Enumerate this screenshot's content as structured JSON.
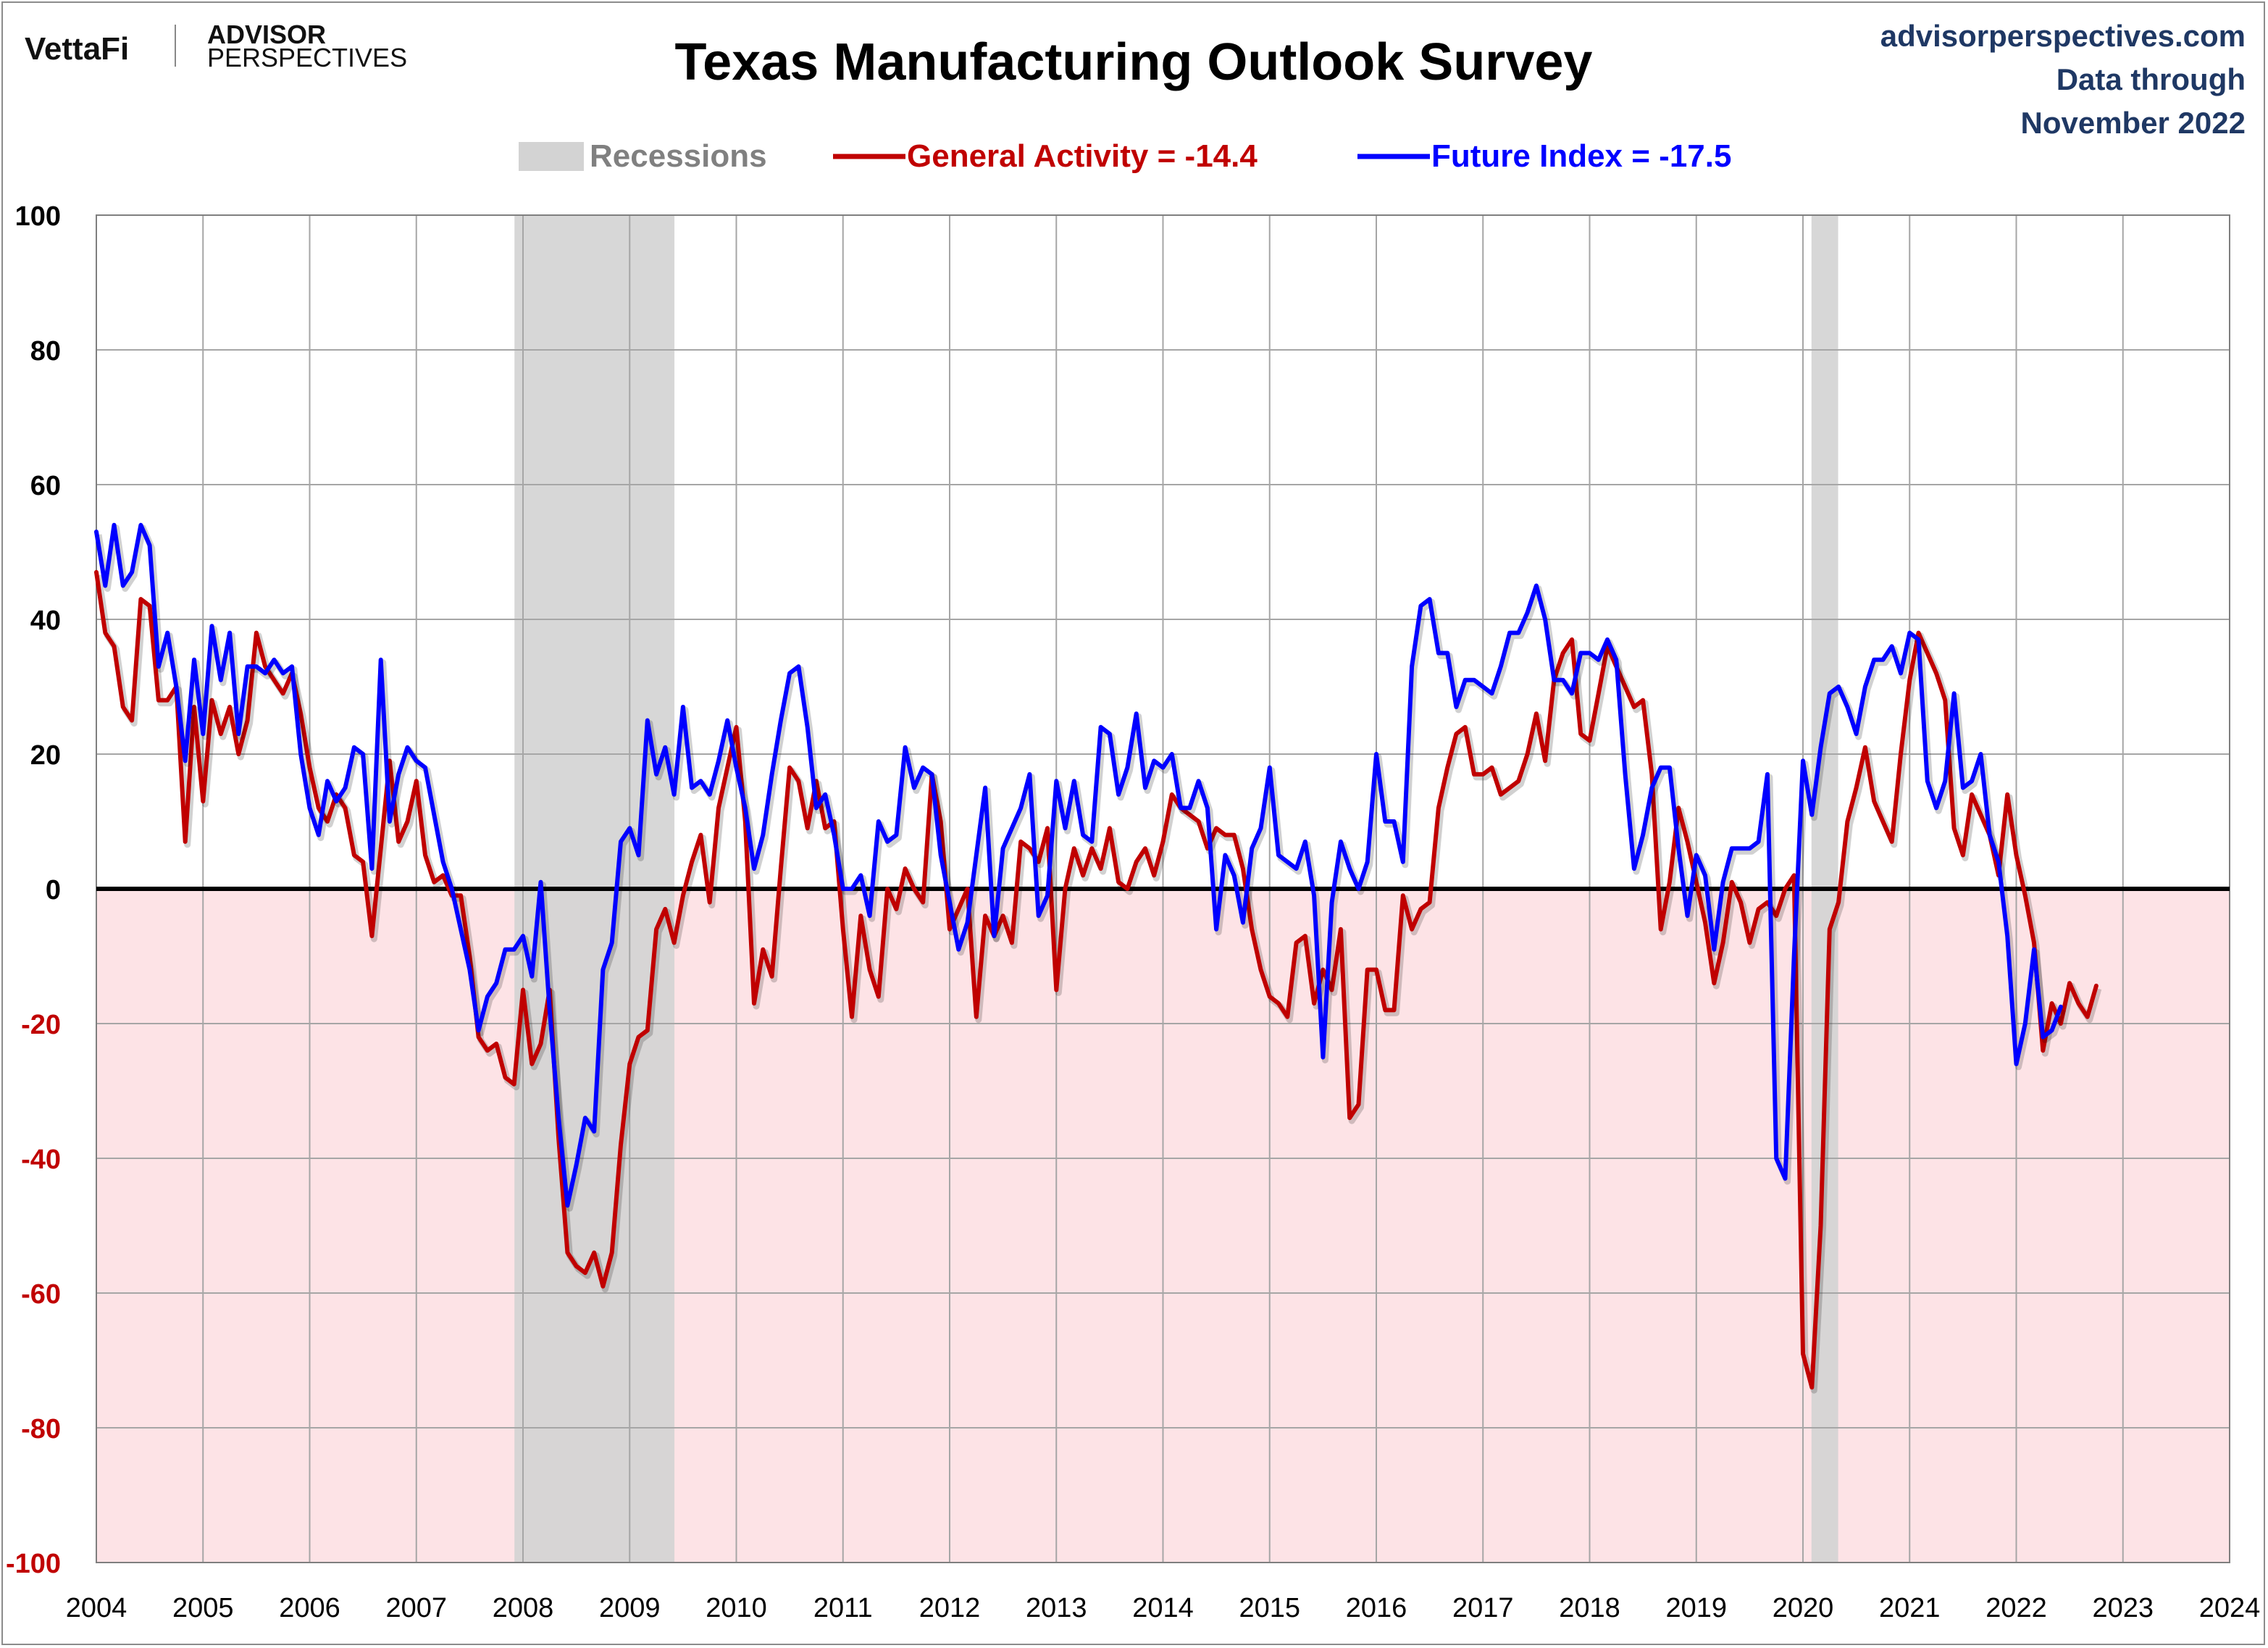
{
  "header": {
    "brand_left_1": "VettaFi",
    "brand_left_2a": "ADVISOR",
    "brand_left_2b": "PERSPECTIVES",
    "site": "advisorperspectives.com",
    "data_through_1": "Data through",
    "data_through_2": "November 2022"
  },
  "colors": {
    "general": "#c00000",
    "future": "#0000ff",
    "recession": "#d3d3d3",
    "negative_zone": "#fde3e6",
    "grid": "#a6a6a6",
    "brand_blue": "#1f3864"
  },
  "chart_data": {
    "type": "line",
    "title": "Texas Manufacturing Outlook Survey",
    "xlabel": "",
    "ylabel": "",
    "xlim": [
      2004,
      2024
    ],
    "ylim": [
      -100,
      100
    ],
    "x_ticks": [
      "2004",
      "2005",
      "2006",
      "2007",
      "2008",
      "2009",
      "2010",
      "2011",
      "2012",
      "2013",
      "2014",
      "2015",
      "2016",
      "2017",
      "2018",
      "2019",
      "2020",
      "2021",
      "2022",
      "2023",
      "2024"
    ],
    "y_ticks": [
      100,
      80,
      60,
      40,
      20,
      0,
      -20,
      -40,
      -60,
      -80,
      -100
    ],
    "grid": true,
    "legend_position": "top-center",
    "legend": {
      "recessions": "Recessions",
      "general": "General Activity = -14.4",
      "future": "Future Index = -17.5"
    },
    "recessions": [
      {
        "start": 2007.92,
        "end": 2009.42
      },
      {
        "start": 2020.08,
        "end": 2020.33
      }
    ],
    "series": [
      {
        "name": "General Activity",
        "key": "general",
        "start_year": 2004.0,
        "values": [
          47,
          38,
          36,
          27,
          25,
          43,
          42,
          28,
          28,
          30,
          7,
          27,
          13,
          28,
          23,
          27,
          20,
          25,
          38,
          33,
          31,
          29,
          32,
          26,
          18,
          12,
          10,
          14,
          12,
          5,
          4,
          -7,
          6,
          19,
          7,
          10,
          16,
          5,
          1,
          2,
          -1,
          -1,
          -10,
          -22,
          -24,
          -23,
          -28,
          -29,
          -15,
          -26,
          -23,
          -15,
          -37,
          -54,
          -56,
          -57,
          -54,
          -59,
          -54,
          -38,
          -26,
          -22,
          -21,
          -6,
          -3,
          -8,
          -1,
          4,
          8,
          -2,
          12,
          18,
          24,
          10,
          -17,
          -9,
          -13,
          3,
          18,
          16,
          9,
          16,
          9,
          10,
          -6,
          -19,
          -4,
          -12,
          -16,
          0,
          -3,
          3,
          0,
          -2,
          17,
          10,
          -6,
          -3,
          0,
          -19,
          -4,
          -7,
          -4,
          -8,
          7,
          6,
          4,
          9,
          -15,
          0,
          6,
          2,
          6,
          3,
          9,
          1,
          0,
          4,
          6,
          2,
          7,
          14,
          12,
          11,
          10,
          6,
          9,
          8,
          8,
          3,
          -6,
          -12,
          -16,
          -17,
          -19,
          -8,
          -7,
          -17,
          -12,
          -15,
          -6,
          -34,
          -32,
          -12,
          -12,
          -18,
          -18,
          -1,
          -6,
          -3,
          -2,
          12,
          18,
          23,
          24,
          17,
          17,
          18,
          14,
          15,
          16,
          20,
          26,
          19,
          31,
          35,
          37,
          23,
          22,
          29,
          36,
          33,
          30,
          27,
          28,
          17,
          -6,
          1,
          12,
          7,
          1,
          -5,
          -14,
          -8,
          1,
          -2,
          -8,
          -3,
          -2,
          -4,
          0,
          2,
          -69,
          -74,
          -50,
          -6,
          -2,
          10,
          15,
          21,
          13,
          10,
          7,
          20,
          31,
          38,
          35,
          32,
          28,
          9,
          5,
          14,
          11,
          8,
          2,
          14,
          5,
          -1,
          -8,
          -24,
          -17,
          -20,
          -14,
          -17,
          -19,
          -14.4
        ]
      },
      {
        "name": "Future Index",
        "key": "future",
        "start_year": 2004.0,
        "values": [
          53,
          45,
          54,
          45,
          47,
          54,
          51,
          33,
          38,
          30,
          19,
          34,
          23,
          39,
          31,
          38,
          23,
          33,
          33,
          32,
          34,
          32,
          33,
          20,
          12,
          8,
          16,
          13,
          15,
          21,
          20,
          3,
          34,
          10,
          17,
          21,
          19,
          18,
          11,
          4,
          0,
          -6,
          -12,
          -21,
          -16,
          -14,
          -9,
          -9,
          -7,
          -13,
          1,
          -18,
          -34,
          -47,
          -41,
          -34,
          -36,
          -12,
          -8,
          7,
          9,
          5,
          25,
          17,
          21,
          14,
          27,
          15,
          16,
          14,
          19,
          25,
          18,
          12,
          3,
          8,
          17,
          25,
          32,
          33,
          24,
          12,
          14,
          8,
          0,
          0,
          2,
          -4,
          10,
          7,
          8,
          21,
          15,
          18,
          17,
          5,
          -2,
          -9,
          -5,
          5,
          15,
          -7,
          6,
          9,
          12,
          17,
          -4,
          -1,
          16,
          9,
          16,
          8,
          7,
          24,
          23,
          14,
          18,
          26,
          15,
          19,
          18,
          20,
          12,
          12,
          16,
          12,
          -6,
          5,
          2,
          -5,
          6,
          9,
          18,
          5,
          4,
          3,
          7,
          -1,
          -25,
          -2,
          7,
          3,
          0,
          4,
          20,
          10,
          10,
          4,
          33,
          42,
          43,
          35,
          35,
          27,
          31,
          31,
          30,
          29,
          33,
          38,
          38,
          41,
          45,
          40,
          31,
          31,
          29,
          35,
          35,
          34,
          37,
          34,
          17,
          3,
          8,
          15,
          18,
          18,
          6,
          -4,
          5,
          2,
          -9,
          1,
          6,
          6,
          6,
          7,
          17,
          -40,
          -43,
          -10,
          19,
          11,
          21,
          29,
          30,
          27,
          23,
          30,
          34,
          34,
          36,
          32,
          38,
          37,
          16,
          12,
          16,
          29,
          15,
          16,
          20,
          8,
          4,
          -7,
          -26,
          -20,
          -9,
          -22,
          -21,
          -17.5
        ]
      }
    ]
  }
}
